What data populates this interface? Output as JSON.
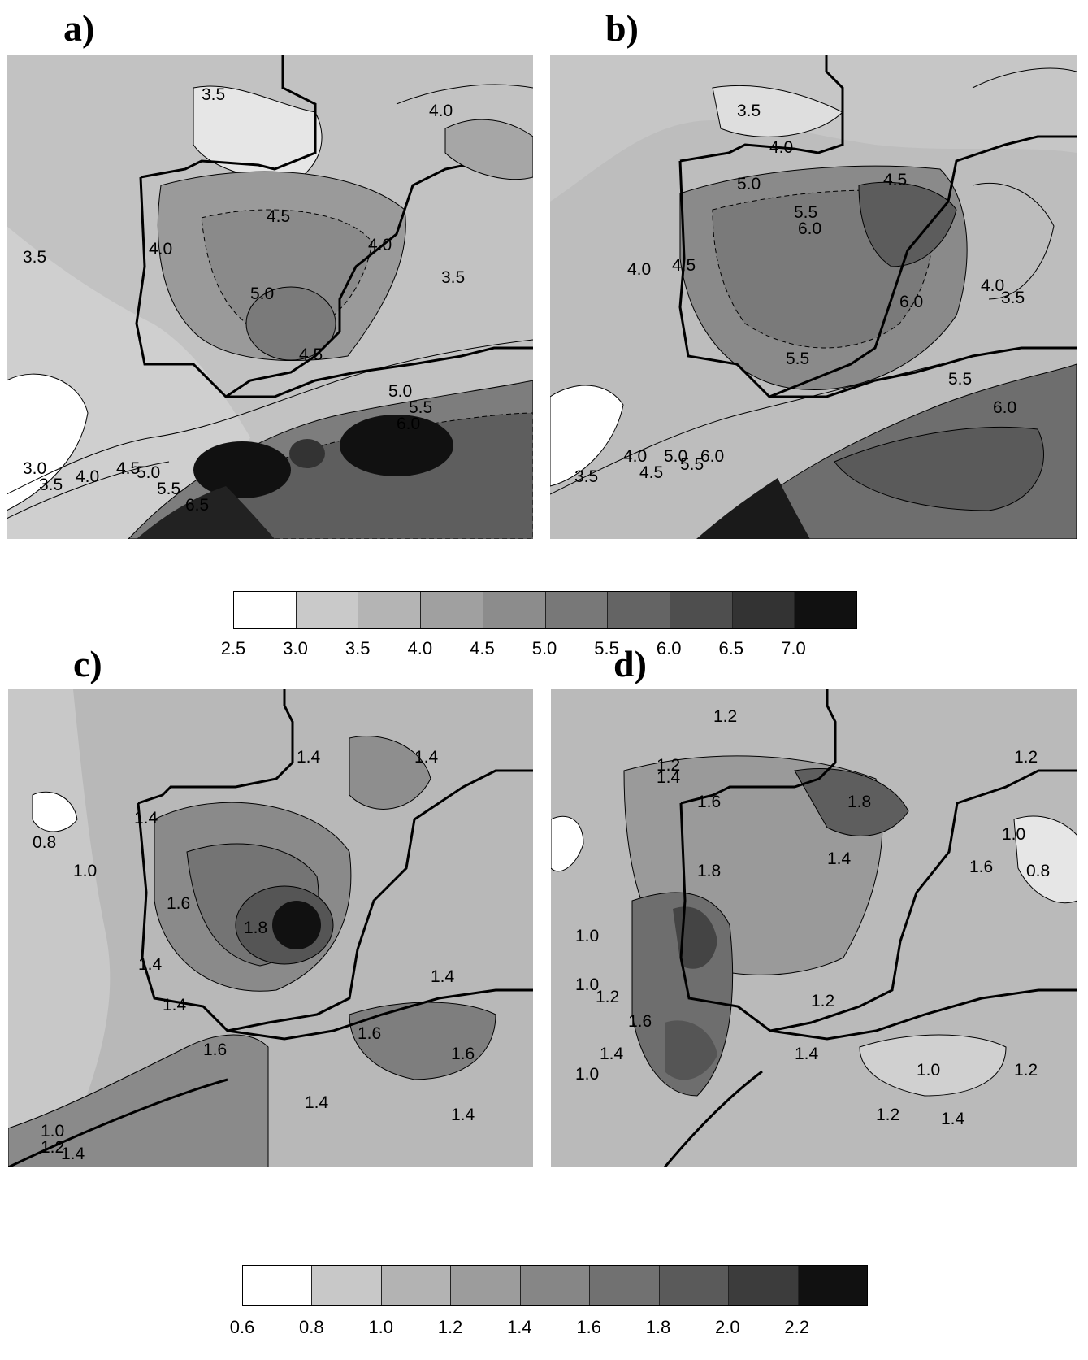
{
  "panels": {
    "a": {
      "label": "a)",
      "contour_labels": [
        "3.5",
        "4.0",
        "4.5",
        "4.0",
        "3.5",
        "4.0",
        "5.0",
        "4.5",
        "3.5",
        "5.0",
        "5.5",
        "6.0",
        "3.0",
        "3.5",
        "4.0",
        "4.5",
        "5.0",
        "5.5",
        "6.5"
      ]
    },
    "b": {
      "label": "b)",
      "contour_labels": [
        "3.5",
        "4.0",
        "4.5",
        "5.0",
        "5.5",
        "6.0",
        "4.0",
        "4.5",
        "4.0",
        "3.5",
        "6.0",
        "5.5",
        "5.5",
        "6.0",
        "3.5",
        "4.0",
        "4.5",
        "5.0",
        "5.5",
        "6.0"
      ]
    },
    "c": {
      "label": "c)",
      "contour_labels": [
        "0.8",
        "1.0",
        "1.4",
        "1.4",
        "1.4",
        "1.6",
        "1.8",
        "1.4",
        "1.4",
        "1.4",
        "1.6",
        "1.6",
        "1.6",
        "1.4",
        "1.4",
        "1.0",
        "1.2",
        "1.4"
      ]
    },
    "d": {
      "label": "d)",
      "contour_labels": [
        "1.2",
        "1.2",
        "1.4",
        "1.6",
        "1.8",
        "1.2",
        "1.0",
        "1.4",
        "0.8",
        "1.6",
        "1.8",
        "1.0",
        "1.0",
        "1.2",
        "1.4",
        "1.6",
        "1.2",
        "1.0",
        "1.4",
        "1.2",
        "1.0",
        "1.2",
        "1.4"
      ]
    }
  },
  "colorbar_top": {
    "ticks": [
      "2.5",
      "3.0",
      "3.5",
      "4.0",
      "4.5",
      "5.0",
      "5.5",
      "6.0",
      "6.5",
      "7.0"
    ],
    "colors": [
      "#ffffff",
      "#c9c9c9",
      "#b4b4b4",
      "#a0a0a0",
      "#8c8c8c",
      "#787878",
      "#646464",
      "#4e4e4e",
      "#333333",
      "#111111"
    ]
  },
  "colorbar_bottom": {
    "ticks": [
      "0.6",
      "0.8",
      "1.0",
      "1.2",
      "1.4",
      "1.6",
      "1.8",
      "2.0",
      "2.2"
    ],
    "colors": [
      "#ffffff",
      "#c8c8c8",
      "#b3b3b3",
      "#9c9c9c",
      "#868686",
      "#717171",
      "#5a5a5a",
      "#3c3c3c",
      "#111111"
    ]
  }
}
